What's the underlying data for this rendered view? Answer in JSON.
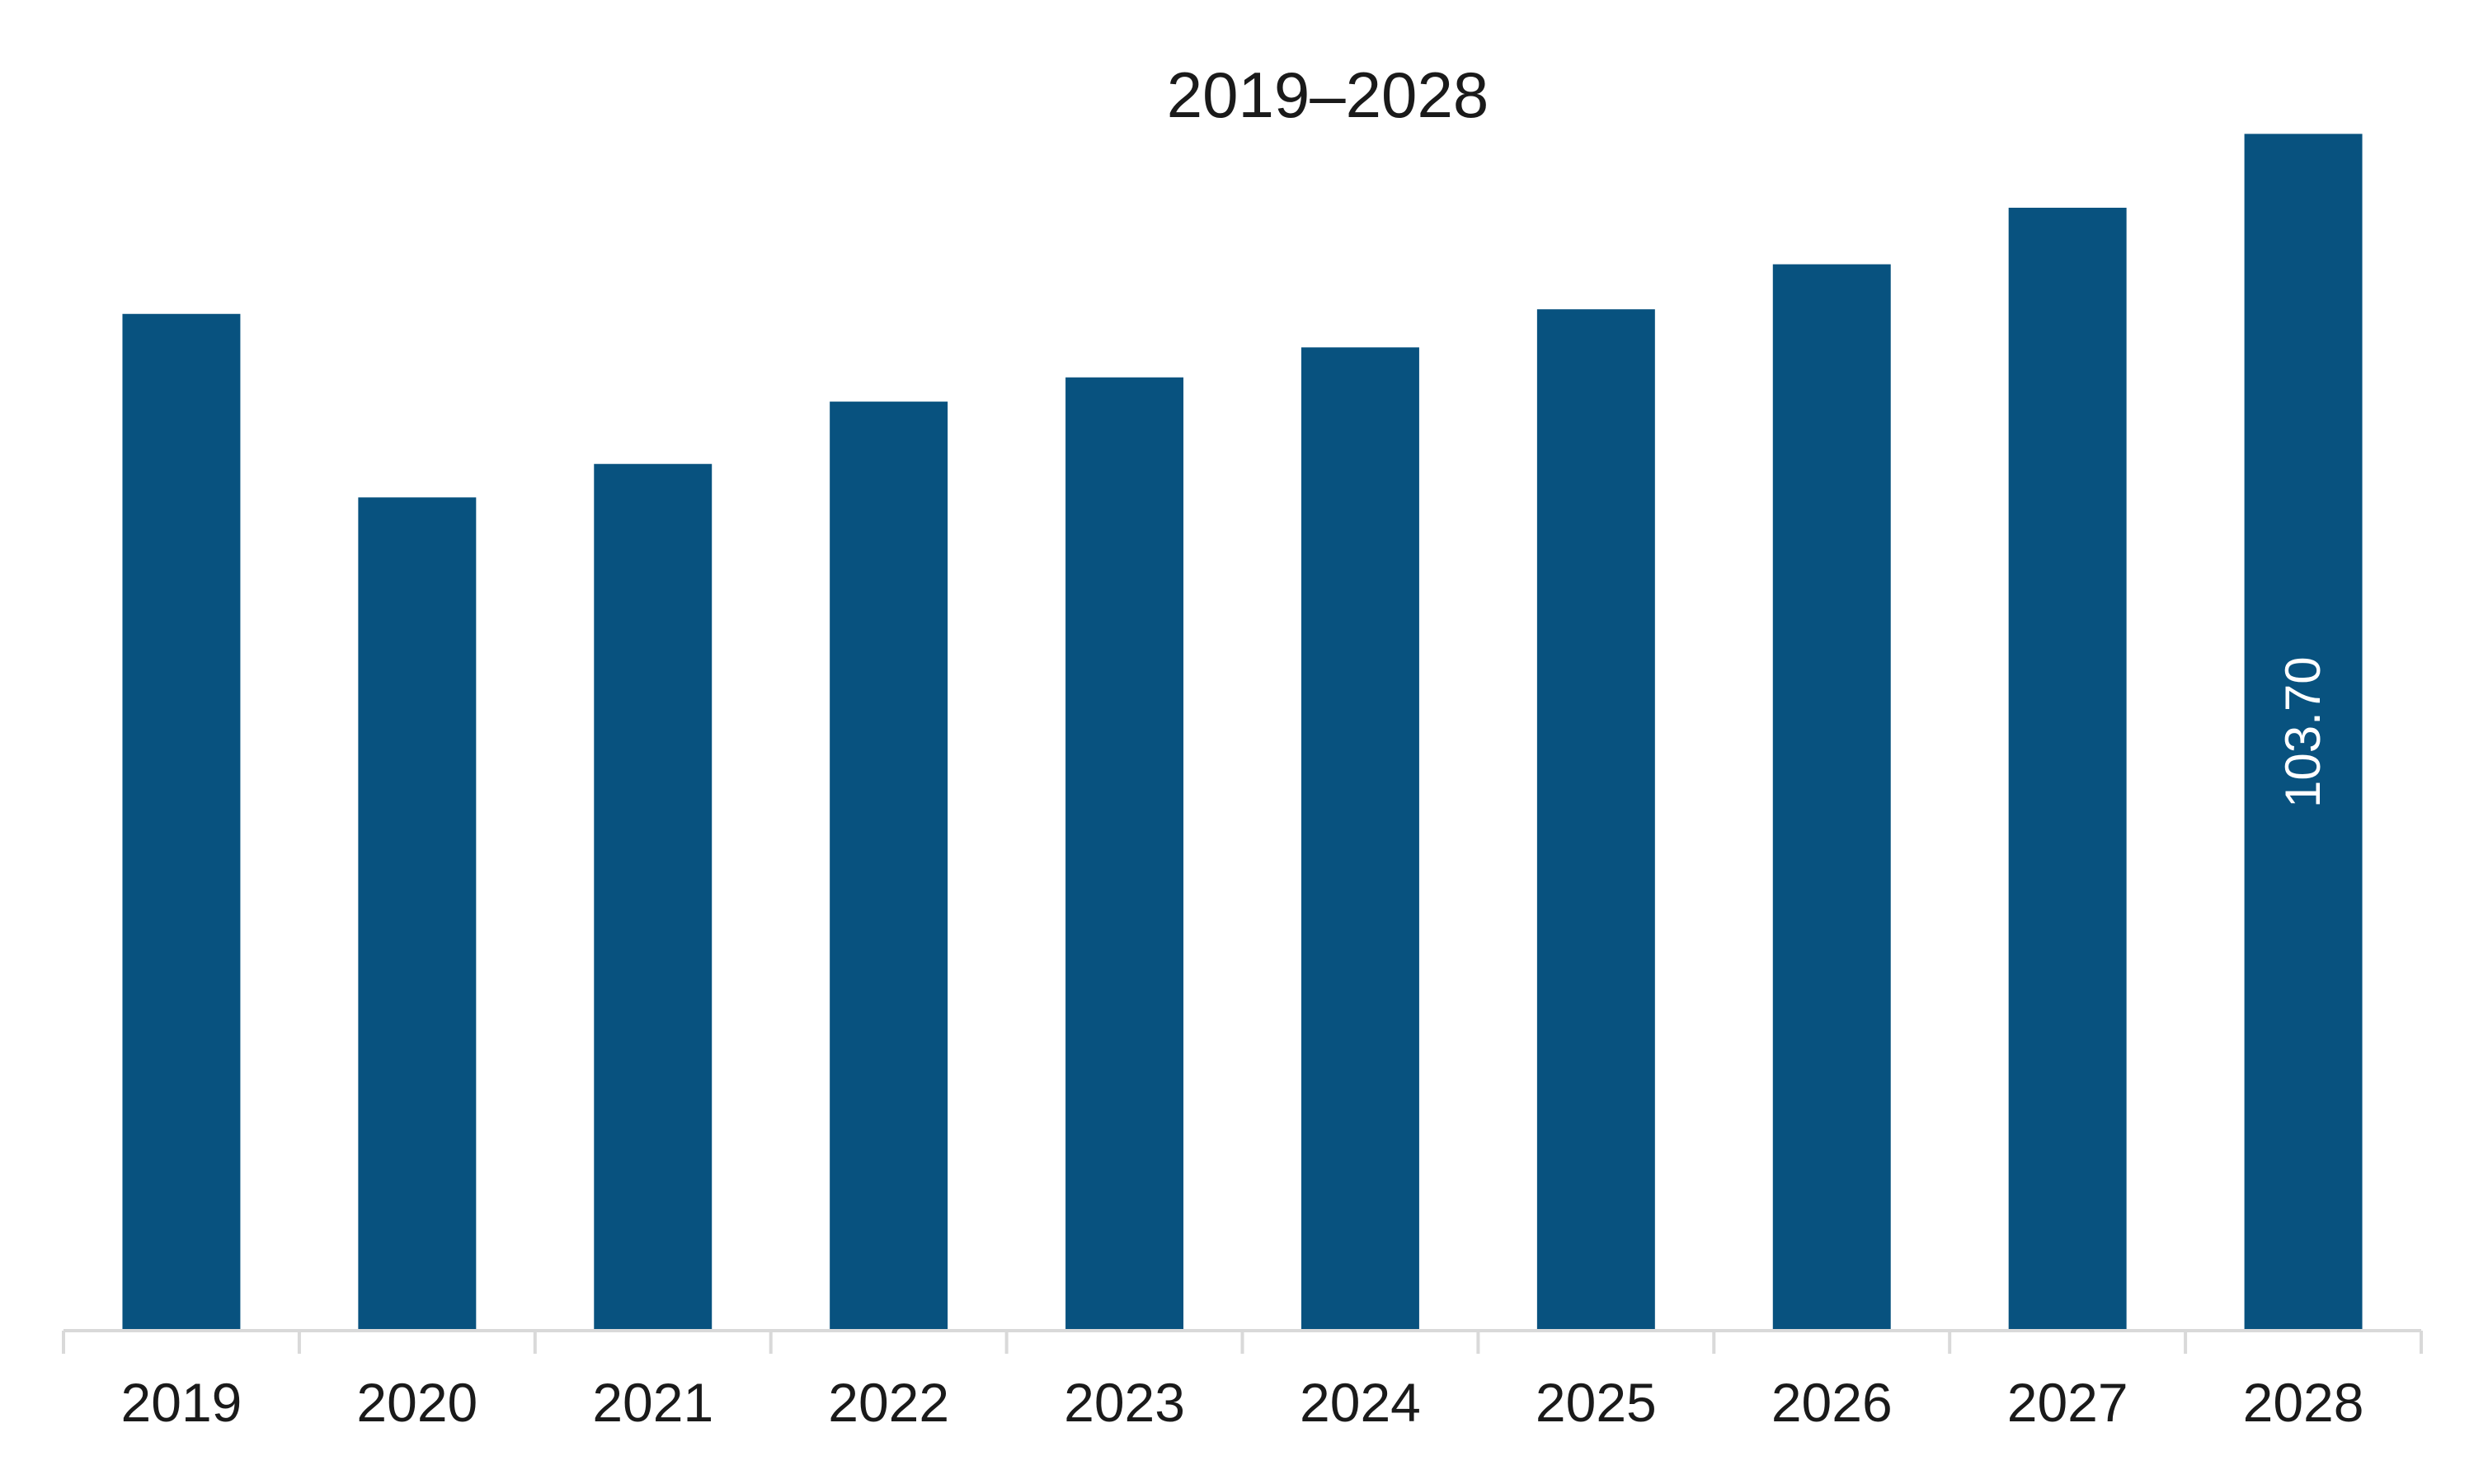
{
  "chart_data": {
    "type": "bar",
    "title": "2019–2028",
    "categories": [
      "2019",
      "2020",
      "2021",
      "2022",
      "2023",
      "2024",
      "2025",
      "2026",
      "2027",
      "2028"
    ],
    "values": [
      88.1,
      72.2,
      75.1,
      80.5,
      82.6,
      85.2,
      88.5,
      92.4,
      97.3,
      103.7
    ],
    "data_labels": [
      "",
      "",
      "",
      "",
      "",
      "",
      "",
      "",
      "",
      "103.70"
    ],
    "ylim": [
      0,
      115.3
    ],
    "bar_color": "#08527f",
    "grid": false,
    "legend": "none"
  }
}
